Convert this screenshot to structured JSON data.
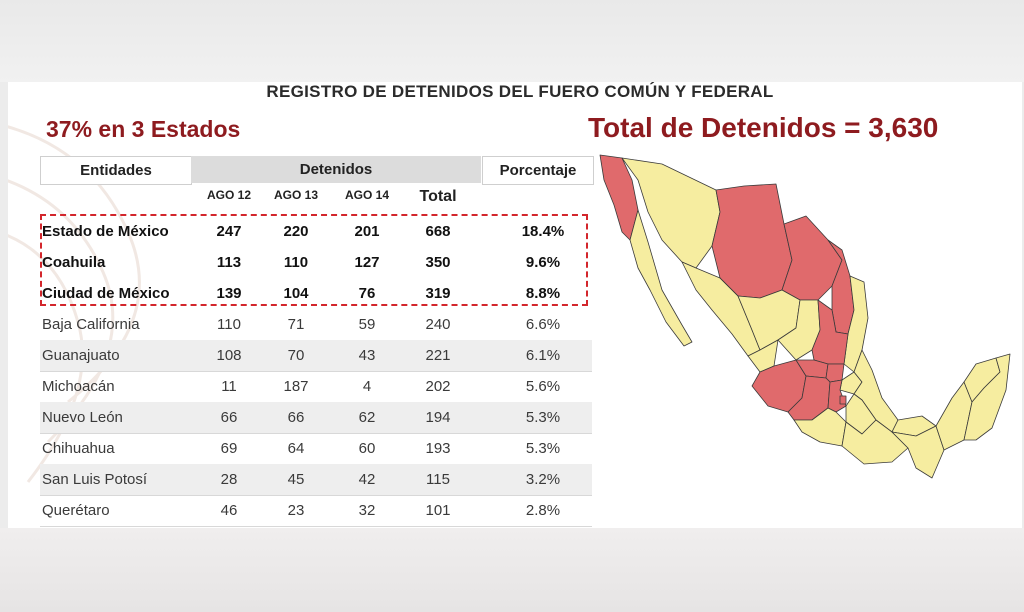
{
  "title": "REGISTRO DE DETENIDOS DEL FUERO COMÚN Y FEDERAL",
  "subtitle_left": "37% en 3 Estados",
  "subtitle_right": "Total de Detenidos = 3,630",
  "table": {
    "header_entidades": "Entidades",
    "header_detenidos": "Detenidos",
    "header_porcentaje": "Porcentaje",
    "col_ago12": "AGO 12",
    "col_ago13": "AGO 13",
    "col_ago14": "AGO 14",
    "col_total": "Total",
    "rows": [
      {
        "entidad": "Estado de México",
        "ago12": "247",
        "ago13": "220",
        "ago14": "201",
        "total": "668",
        "porcentaje": "18.4%"
      },
      {
        "entidad": "Coahuila",
        "ago12": "113",
        "ago13": "110",
        "ago14": "127",
        "total": "350",
        "porcentaje": "9.6%"
      },
      {
        "entidad": "Ciudad de México",
        "ago12": "139",
        "ago13": "104",
        "ago14": "76",
        "total": "319",
        "porcentaje": "8.8%"
      },
      {
        "entidad": "Baja California",
        "ago12": "110",
        "ago13": "71",
        "ago14": "59",
        "total": "240",
        "porcentaje": "6.6%"
      },
      {
        "entidad": "Guanajuato",
        "ago12": "108",
        "ago13": "70",
        "ago14": "43",
        "total": "221",
        "porcentaje": "6.1%"
      },
      {
        "entidad": "Michoacán",
        "ago12": "11",
        "ago13": "187",
        "ago14": "4",
        "total": "202",
        "porcentaje": "5.6%"
      },
      {
        "entidad": "Nuevo León",
        "ago12": "66",
        "ago13": "66",
        "ago14": "62",
        "total": "194",
        "porcentaje": "5.3%"
      },
      {
        "entidad": "Chihuahua",
        "ago12": "69",
        "ago13": "64",
        "ago14": "60",
        "total": "193",
        "porcentaje": "5.3%"
      },
      {
        "entidad": "San Luis Potosí",
        "ago12": "28",
        "ago13": "45",
        "ago14": "42",
        "total": "115",
        "porcentaje": "3.2%"
      },
      {
        "entidad": "Querétaro",
        "ago12": "46",
        "ago13": "23",
        "ago14": "32",
        "total": "101",
        "porcentaje": "2.8%"
      }
    ]
  },
  "colors": {
    "accent": "#8e1b1f",
    "highlight_border": "#d3262c",
    "map_highlight": "#e06a6c",
    "map_base": "#f6eda0",
    "map_border": "#3a3a3a"
  }
}
